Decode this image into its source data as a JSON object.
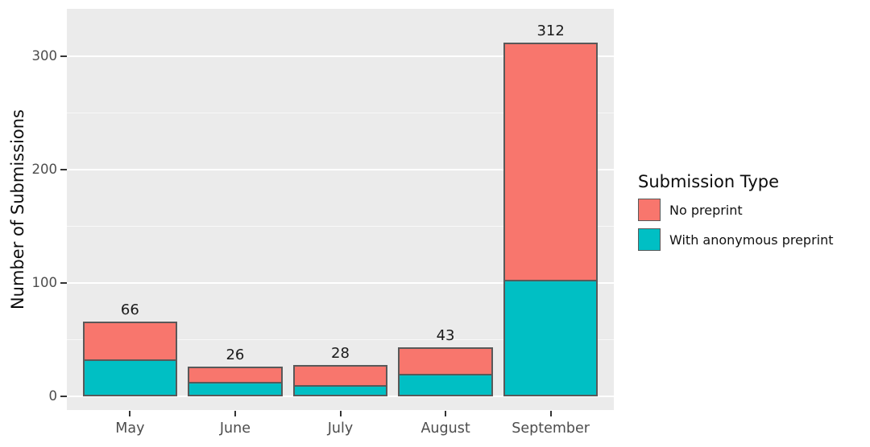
{
  "figure": {
    "background": "#FFFFFF",
    "panel_background": "#EBEBEB",
    "gridline_color": "#FFFFFF",
    "bar_outline_color": "#595959",
    "axis_text_color": "#4D4D4D",
    "tick_mark_color": "#333333"
  },
  "legend": {
    "title": "Submission Type",
    "items": [
      {
        "label": "No preprint",
        "color": "#F8766D"
      },
      {
        "label": "With anonymous preprint",
        "color": "#00BFC4"
      }
    ]
  },
  "chart_data": {
    "type": "bar",
    "stacked": true,
    "title": "",
    "xlabel": "",
    "ylabel": "Number of Submissions",
    "categories": [
      "May",
      "June",
      "July",
      "August",
      "September"
    ],
    "series": [
      {
        "name": "No preprint",
        "color": "#F8766D",
        "values": [
          33,
          13,
          18,
          23,
          209
        ]
      },
      {
        "name": "With anonymous preprint",
        "color": "#00BFC4",
        "values": [
          33,
          13,
          10,
          20,
          103
        ]
      }
    ],
    "totals": [
      66,
      26,
      28,
      43,
      312
    ],
    "y_ticks": [
      0,
      100,
      200,
      300
    ],
    "y_minor_ticks": [
      50,
      150,
      250
    ],
    "ylim": [
      -12,
      342
    ],
    "grid": true,
    "legend_position": "right"
  }
}
